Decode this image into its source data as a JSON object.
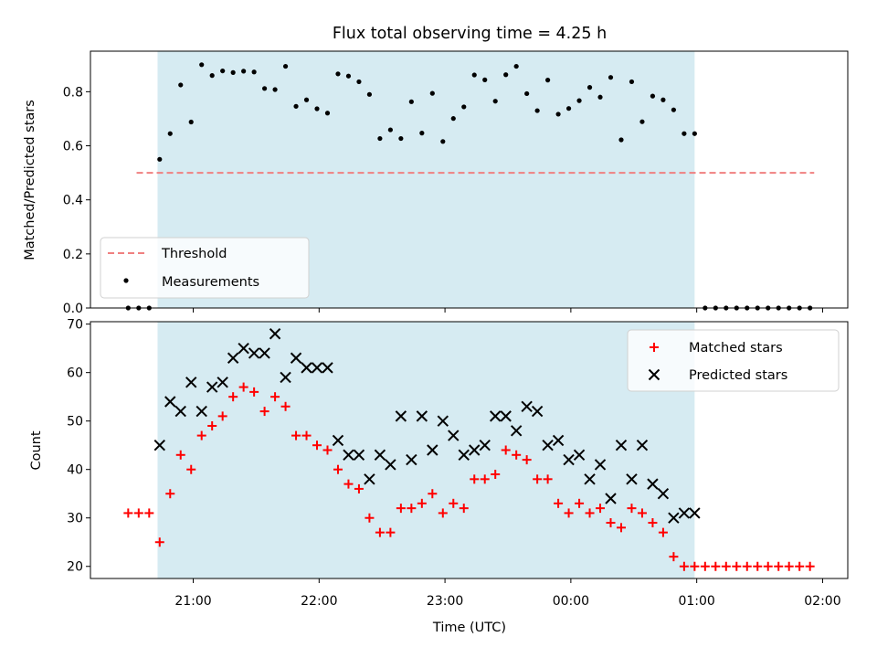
{
  "colors": {
    "shade": "#add8e6",
    "threshold": "#f08080",
    "measurement": "#000000",
    "matched": "#ff0000",
    "predicted": "#000000"
  },
  "chart_data": [
    {
      "type": "scatter",
      "title": "Flux total observing time = 4.25 h",
      "xlabel": "",
      "ylabel": "Matched/Predicted stars",
      "ylim": [
        0,
        0.95
      ],
      "yticks": [
        "0.0",
        "0.2",
        "0.4",
        "0.6",
        "0.8"
      ],
      "xlim": [
        "2024-01-01T20:11",
        "2024-01-02T02:12"
      ],
      "shaded_span": [
        "2024-01-01T20:43",
        "2024-01-02T00:59"
      ],
      "threshold": {
        "name": "Threshold",
        "value": 0.5,
        "x_range": [
          "2024-01-01T20:33",
          "2024-01-02T01:56"
        ]
      },
      "legend_position": "lower-left",
      "series": [
        {
          "name": "Measurements",
          "points": [
            [
              "2024-01-01T20:29",
              0
            ],
            [
              "2024-01-01T20:34",
              0
            ],
            [
              "2024-01-01T20:39",
              0
            ],
            [
              "2024-01-01T20:44",
              0.55
            ],
            [
              "2024-01-01T20:49",
              0.645
            ],
            [
              "2024-01-01T20:54",
              0.825
            ],
            [
              "2024-01-01T20:59",
              0.688
            ],
            [
              "2024-01-01T21:04",
              0.9
            ],
            [
              "2024-01-01T21:09",
              0.86
            ],
            [
              "2024-01-01T21:14",
              0.877
            ],
            [
              "2024-01-01T21:19",
              0.871
            ],
            [
              "2024-01-01T21:24",
              0.876
            ],
            [
              "2024-01-01T21:29",
              0.873
            ],
            [
              "2024-01-01T21:34",
              0.812
            ],
            [
              "2024-01-01T21:39",
              0.808
            ],
            [
              "2024-01-01T21:44",
              0.894
            ],
            [
              "2024-01-01T21:49",
              0.746
            ],
            [
              "2024-01-01T21:54",
              0.77
            ],
            [
              "2024-01-01T21:59",
              0.737
            ],
            [
              "2024-01-01T22:04",
              0.721
            ],
            [
              "2024-01-01T22:09",
              0.866
            ],
            [
              "2024-01-01T22:14",
              0.858
            ],
            [
              "2024-01-01T22:19",
              0.837
            ],
            [
              "2024-01-01T22:24",
              0.79
            ],
            [
              "2024-01-01T22:29",
              0.627
            ],
            [
              "2024-01-01T22:34",
              0.659
            ],
            [
              "2024-01-01T22:39",
              0.627
            ],
            [
              "2024-01-01T22:44",
              0.763
            ],
            [
              "2024-01-01T22:49",
              0.647
            ],
            [
              "2024-01-01T22:54",
              0.794
            ],
            [
              "2024-01-01T22:59",
              0.616
            ],
            [
              "2024-01-01T23:04",
              0.701
            ],
            [
              "2024-01-01T23:09",
              0.744
            ],
            [
              "2024-01-01T23:14",
              0.862
            ],
            [
              "2024-01-01T23:19",
              0.844
            ],
            [
              "2024-01-01T23:24",
              0.765
            ],
            [
              "2024-01-01T23:29",
              0.863
            ],
            [
              "2024-01-01T23:34",
              0.894
            ],
            [
              "2024-01-01T23:39",
              0.793
            ],
            [
              "2024-01-01T23:44",
              0.73
            ],
            [
              "2024-01-01T23:49",
              0.843
            ],
            [
              "2024-01-01T23:54",
              0.717
            ],
            [
              "2024-01-01T23:59",
              0.738
            ],
            [
              "2024-01-02T00:04",
              0.767
            ],
            [
              "2024-01-02T00:09",
              0.816
            ],
            [
              "2024-01-02T00:14",
              0.78
            ],
            [
              "2024-01-02T00:19",
              0.853
            ],
            [
              "2024-01-02T00:24",
              0.622
            ],
            [
              "2024-01-02T00:29",
              0.837
            ],
            [
              "2024-01-02T00:34",
              0.689
            ],
            [
              "2024-01-02T00:39",
              0.784
            ],
            [
              "2024-01-02T00:44",
              0.77
            ],
            [
              "2024-01-02T00:49",
              0.733
            ],
            [
              "2024-01-02T00:54",
              0.645
            ],
            [
              "2024-01-02T00:59",
              0.645
            ],
            [
              "2024-01-02T01:04",
              0
            ],
            [
              "2024-01-02T01:09",
              0
            ],
            [
              "2024-01-02T01:14",
              0
            ],
            [
              "2024-01-02T01:19",
              0
            ],
            [
              "2024-01-02T01:24",
              0
            ],
            [
              "2024-01-02T01:29",
              0
            ],
            [
              "2024-01-02T01:34",
              0
            ],
            [
              "2024-01-02T01:39",
              0
            ],
            [
              "2024-01-02T01:44",
              0
            ],
            [
              "2024-01-02T01:49",
              0
            ],
            [
              "2024-01-02T01:54",
              0
            ]
          ]
        }
      ]
    },
    {
      "type": "scatter",
      "xlabel": "Time (UTC)",
      "ylabel": "Count",
      "ylim": [
        17.5,
        70.5
      ],
      "yticks": [
        "20",
        "30",
        "40",
        "50",
        "60",
        "70"
      ],
      "xlim": [
        "2024-01-01T20:11",
        "2024-01-02T02:12"
      ],
      "xticks": [
        "21:00",
        "22:00",
        "23:00",
        "00:00",
        "01:00",
        "02:00"
      ],
      "shaded_span": [
        "2024-01-01T20:43",
        "2024-01-02T00:59"
      ],
      "legend_position": "upper-right",
      "series": [
        {
          "name": "Matched stars",
          "marker": "+",
          "points": [
            [
              "2024-01-01T20:29",
              31
            ],
            [
              "2024-01-01T20:34",
              31
            ],
            [
              "2024-01-01T20:39",
              31
            ],
            [
              "2024-01-01T20:44",
              25
            ],
            [
              "2024-01-01T20:49",
              35
            ],
            [
              "2024-01-01T20:54",
              43
            ],
            [
              "2024-01-01T20:59",
              40
            ],
            [
              "2024-01-01T21:04",
              47
            ],
            [
              "2024-01-01T21:09",
              49
            ],
            [
              "2024-01-01T21:14",
              51
            ],
            [
              "2024-01-01T21:19",
              55
            ],
            [
              "2024-01-01T21:24",
              57
            ],
            [
              "2024-01-01T21:29",
              56
            ],
            [
              "2024-01-01T21:34",
              52
            ],
            [
              "2024-01-01T21:39",
              55
            ],
            [
              "2024-01-01T21:44",
              53
            ],
            [
              "2024-01-01T21:49",
              47
            ],
            [
              "2024-01-01T21:54",
              47
            ],
            [
              "2024-01-01T21:59",
              45
            ],
            [
              "2024-01-01T22:04",
              44
            ],
            [
              "2024-01-01T22:09",
              40
            ],
            [
              "2024-01-01T22:14",
              37
            ],
            [
              "2024-01-01T22:19",
              36
            ],
            [
              "2024-01-01T22:24",
              30
            ],
            [
              "2024-01-01T22:29",
              27
            ],
            [
              "2024-01-01T22:34",
              27
            ],
            [
              "2024-01-01T22:39",
              32
            ],
            [
              "2024-01-01T22:44",
              32
            ],
            [
              "2024-01-01T22:49",
              33
            ],
            [
              "2024-01-01T22:54",
              35
            ],
            [
              "2024-01-01T22:59",
              31
            ],
            [
              "2024-01-01T23:04",
              33
            ],
            [
              "2024-01-01T23:09",
              32
            ],
            [
              "2024-01-01T23:14",
              38
            ],
            [
              "2024-01-01T23:19",
              38
            ],
            [
              "2024-01-01T23:24",
              39
            ],
            [
              "2024-01-01T23:29",
              44
            ],
            [
              "2024-01-01T23:34",
              43
            ],
            [
              "2024-01-01T23:39",
              42
            ],
            [
              "2024-01-01T23:44",
              38
            ],
            [
              "2024-01-01T23:49",
              38
            ],
            [
              "2024-01-01T23:54",
              33
            ],
            [
              "2024-01-01T23:59",
              31
            ],
            [
              "2024-01-02T00:04",
              33
            ],
            [
              "2024-01-02T00:09",
              31
            ],
            [
              "2024-01-02T00:14",
              32
            ],
            [
              "2024-01-02T00:19",
              29
            ],
            [
              "2024-01-02T00:24",
              28
            ],
            [
              "2024-01-02T00:29",
              32
            ],
            [
              "2024-01-02T00:34",
              31
            ],
            [
              "2024-01-02T00:39",
              29
            ],
            [
              "2024-01-02T00:44",
              27
            ],
            [
              "2024-01-02T00:49",
              22
            ],
            [
              "2024-01-02T00:54",
              20
            ],
            [
              "2024-01-02T00:59",
              20
            ],
            [
              "2024-01-02T01:04",
              20
            ],
            [
              "2024-01-02T01:09",
              20
            ],
            [
              "2024-01-02T01:14",
              20
            ],
            [
              "2024-01-02T01:19",
              20
            ],
            [
              "2024-01-02T01:24",
              20
            ],
            [
              "2024-01-02T01:29",
              20
            ],
            [
              "2024-01-02T01:34",
              20
            ],
            [
              "2024-01-02T01:39",
              20
            ],
            [
              "2024-01-02T01:44",
              20
            ],
            [
              "2024-01-02T01:49",
              20
            ],
            [
              "2024-01-02T01:54",
              20
            ]
          ]
        },
        {
          "name": "Predicted stars",
          "marker": "x",
          "points": [
            [
              "2024-01-01T20:44",
              45
            ],
            [
              "2024-01-01T20:49",
              54
            ],
            [
              "2024-01-01T20:54",
              52
            ],
            [
              "2024-01-01T20:59",
              58
            ],
            [
              "2024-01-01T21:04",
              52
            ],
            [
              "2024-01-01T21:09",
              57
            ],
            [
              "2024-01-01T21:14",
              58
            ],
            [
              "2024-01-01T21:19",
              63
            ],
            [
              "2024-01-01T21:24",
              65
            ],
            [
              "2024-01-01T21:29",
              64
            ],
            [
              "2024-01-01T21:34",
              64
            ],
            [
              "2024-01-01T21:39",
              68
            ],
            [
              "2024-01-01T21:44",
              59
            ],
            [
              "2024-01-01T21:49",
              63
            ],
            [
              "2024-01-01T21:54",
              61
            ],
            [
              "2024-01-01T21:59",
              61
            ],
            [
              "2024-01-01T22:04",
              61
            ],
            [
              "2024-01-01T22:09",
              46
            ],
            [
              "2024-01-01T22:14",
              43
            ],
            [
              "2024-01-01T22:19",
              43
            ],
            [
              "2024-01-01T22:24",
              38
            ],
            [
              "2024-01-01T22:29",
              43
            ],
            [
              "2024-01-01T22:34",
              41
            ],
            [
              "2024-01-01T22:39",
              51
            ],
            [
              "2024-01-01T22:44",
              42
            ],
            [
              "2024-01-01T22:49",
              51
            ],
            [
              "2024-01-01T22:54",
              44
            ],
            [
              "2024-01-01T22:59",
              50
            ],
            [
              "2024-01-01T23:04",
              47
            ],
            [
              "2024-01-01T23:09",
              43
            ],
            [
              "2024-01-01T23:14",
              44
            ],
            [
              "2024-01-01T23:19",
              45
            ],
            [
              "2024-01-01T23:24",
              51
            ],
            [
              "2024-01-01T23:29",
              51
            ],
            [
              "2024-01-01T23:34",
              48
            ],
            [
              "2024-01-01T23:39",
              53
            ],
            [
              "2024-01-01T23:44",
              52
            ],
            [
              "2024-01-01T23:49",
              45
            ],
            [
              "2024-01-01T23:54",
              46
            ],
            [
              "2024-01-01T23:59",
              42
            ],
            [
              "2024-01-02T00:04",
              43
            ],
            [
              "2024-01-02T00:09",
              38
            ],
            [
              "2024-01-02T00:14",
              41
            ],
            [
              "2024-01-02T00:19",
              34
            ],
            [
              "2024-01-02T00:24",
              45
            ],
            [
              "2024-01-02T00:29",
              38
            ],
            [
              "2024-01-02T00:34",
              45
            ],
            [
              "2024-01-02T00:39",
              37
            ],
            [
              "2024-01-02T00:44",
              35
            ],
            [
              "2024-01-02T00:49",
              30
            ],
            [
              "2024-01-02T00:54",
              31
            ],
            [
              "2024-01-02T00:59",
              31
            ]
          ]
        }
      ]
    }
  ]
}
